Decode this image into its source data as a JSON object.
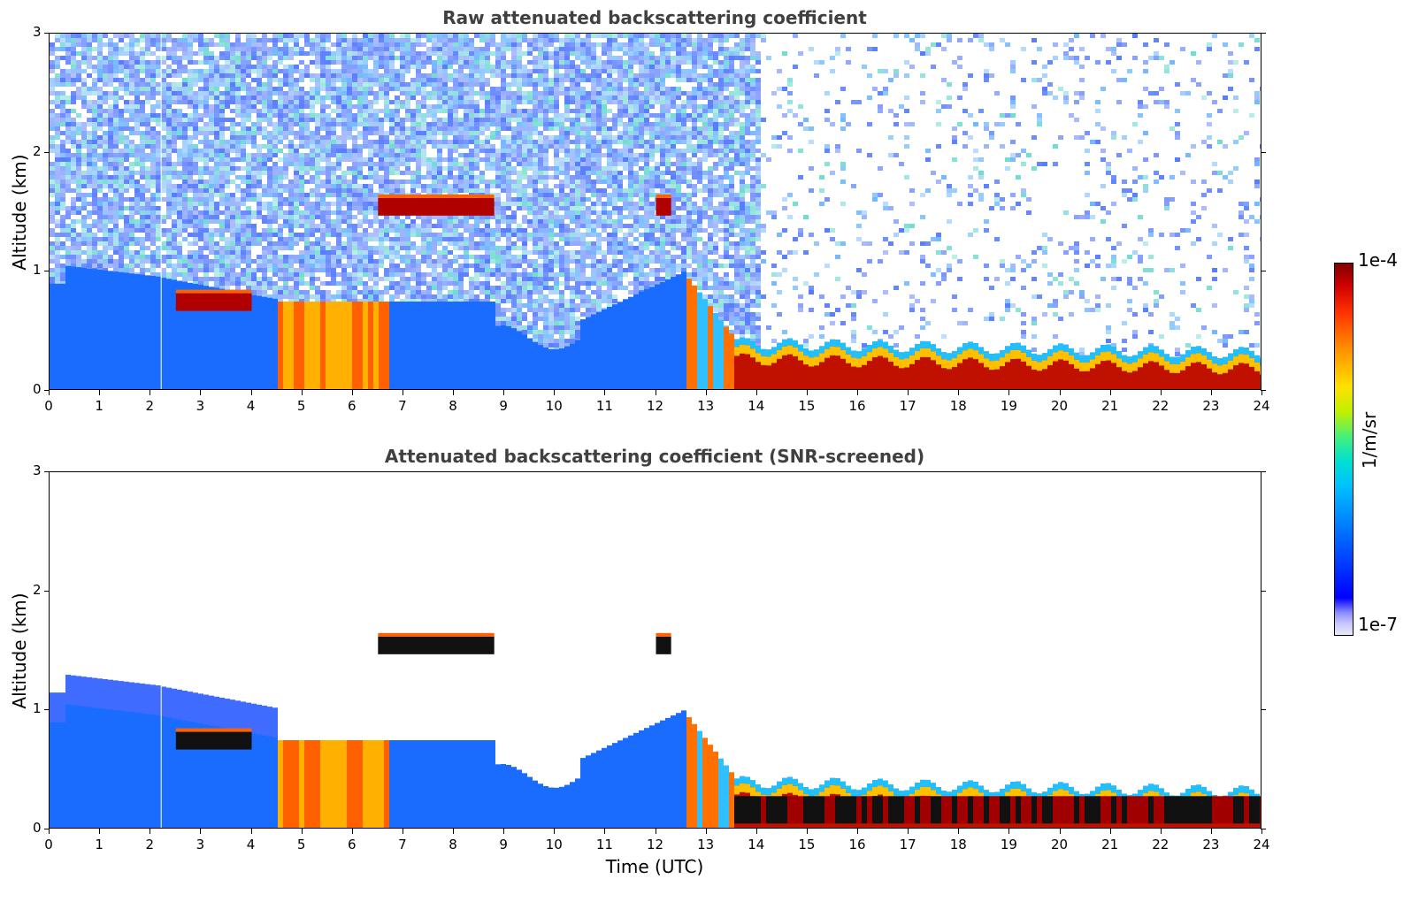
{
  "chart_data": [
    {
      "type": "heatmap",
      "title": "Raw attenuated backscattering coefficient",
      "xlabel": "",
      "ylabel": "Altitude (km)",
      "xlim": [
        0,
        24
      ],
      "ylim": [
        0,
        3
      ],
      "x_ticks": [
        "0",
        "1",
        "2",
        "3",
        "4",
        "5",
        "6",
        "7",
        "8",
        "9",
        "10",
        "11",
        "12",
        "13",
        "14",
        "15",
        "16",
        "17",
        "18",
        "19",
        "20",
        "21",
        "22",
        "23",
        "24"
      ],
      "y_ticks": [
        "0",
        "1",
        "2",
        "3"
      ],
      "features": [
        {
          "name": "boundary-layer",
          "x": [
            0,
            24
          ],
          "top_km": [
            0.9,
            0.7,
            0.45,
            0.35,
            0.3
          ]
        },
        {
          "name": "cloud-layer-1",
          "x": [
            6.5,
            8.8
          ],
          "altitude_km": 1.55
        },
        {
          "name": "cloud-layer-2",
          "x": [
            12.0,
            12.3
          ],
          "altitude_km": 1.55
        },
        {
          "name": "aerosol-layer",
          "x": [
            2.5,
            4.0
          ],
          "altitude_km": 0.75
        },
        {
          "name": "dense-layer-low",
          "x": [
            13.5,
            23.8
          ],
          "altitude_km": 0.2
        }
      ]
    },
    {
      "type": "heatmap",
      "title": "Attenuated backscattering coefficient (SNR-screened)",
      "xlabel": "Time (UTC)",
      "ylabel": "Altitude (km)",
      "xlim": [
        0,
        24
      ],
      "ylim": [
        0,
        3
      ],
      "x_ticks": [
        "0",
        "1",
        "2",
        "3",
        "4",
        "5",
        "6",
        "7",
        "8",
        "9",
        "10",
        "11",
        "12",
        "13",
        "14",
        "15",
        "16",
        "17",
        "18",
        "19",
        "20",
        "21",
        "22",
        "23",
        "24"
      ],
      "y_ticks": [
        "0",
        "1",
        "2",
        "3"
      ]
    }
  ],
  "colorbar": {
    "max_label": "1e-4",
    "min_label": "1e-7",
    "unit": "1/m/sr"
  }
}
